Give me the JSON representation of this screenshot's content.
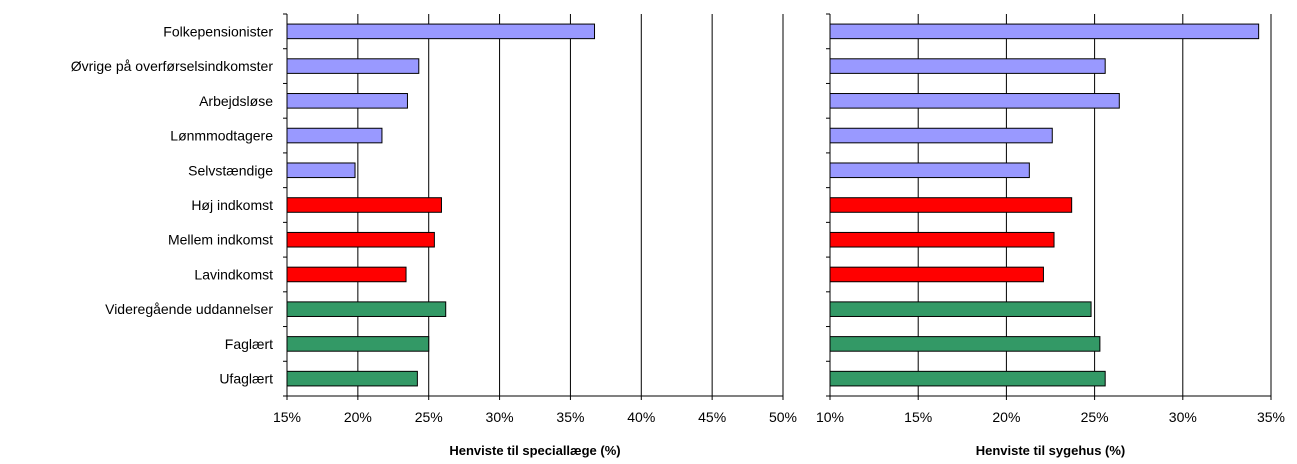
{
  "chart_data": [
    {
      "type": "bar",
      "orientation": "horizontal",
      "title": "",
      "xlabel": "Henviste til speciallæge (%)",
      "ylabel": "",
      "xlim": [
        15,
        50
      ],
      "xticks": [
        "15%",
        "20%",
        "25%",
        "30%",
        "35%",
        "40%",
        "45%",
        "50%"
      ],
      "grid": true,
      "categories": [
        "Folkepensionister",
        "Øvrige på overførselsindkomster",
        "Arbejdsløse",
        "Lønmmodtagere",
        "Selvstændige",
        "Høj indkomst",
        "Mellem indkomst",
        "Lavindkomst",
        "Videregående uddannelser",
        "Faglært",
        "Ufaglært"
      ],
      "values": [
        36.7,
        24.3,
        23.5,
        21.7,
        19.8,
        25.9,
        25.4,
        23.4,
        26.2,
        25.0,
        24.2
      ],
      "bar_colors": [
        "#9999ff",
        "#9999ff",
        "#9999ff",
        "#9999ff",
        "#9999ff",
        "#ff0000",
        "#ff0000",
        "#ff0000",
        "#339966",
        "#339966",
        "#339966"
      ]
    },
    {
      "type": "bar",
      "orientation": "horizontal",
      "title": "",
      "xlabel": "Henviste til sygehus (%)",
      "ylabel": "",
      "xlim": [
        10,
        35
      ],
      "xticks": [
        "10%",
        "15%",
        "20%",
        "25%",
        "30%",
        "35%"
      ],
      "grid": true,
      "categories": [
        "Folkepensionister",
        "Øvrige på overførselsindkomster",
        "Arbejdsløse",
        "Lønmmodtagere",
        "Selvstændige",
        "Høj indkomst",
        "Mellem indkomst",
        "Lavindkomst",
        "Videregående uddannelser",
        "Faglært",
        "Ufaglært"
      ],
      "values": [
        34.3,
        25.6,
        26.4,
        22.6,
        21.3,
        23.7,
        22.7,
        22.1,
        24.8,
        25.3,
        25.6
      ],
      "bar_colors": [
        "#9999ff",
        "#9999ff",
        "#9999ff",
        "#9999ff",
        "#9999ff",
        "#ff0000",
        "#ff0000",
        "#ff0000",
        "#339966",
        "#339966",
        "#339966"
      ]
    }
  ]
}
